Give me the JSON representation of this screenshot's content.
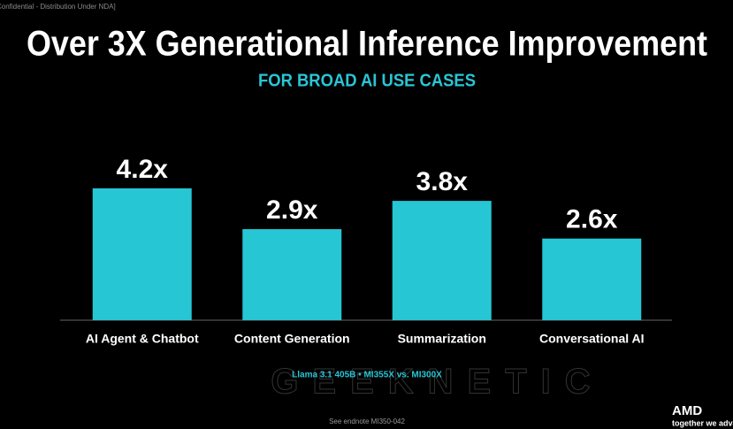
{
  "chart_data": {
    "type": "bar",
    "title": "Over 3X Generational Inference Improvement",
    "subtitle": "FOR BROAD AI USE CASES",
    "categories": [
      "AI Agent & Chatbot",
      "Content Generation",
      "Summarization",
      "Conversational AI"
    ],
    "values": [
      4.2,
      2.9,
      3.8,
      2.6
    ],
    "value_labels": [
      "4.2x",
      "2.9x",
      "3.8x",
      "2.6x"
    ],
    "color": "#26c6d4",
    "note": "Llama 3.1 405B  •  MI355X vs. MI300X",
    "source": "See endnote MI350-042"
  },
  "header": {
    "confidential": "Confidential - Distribution Under NDA]"
  },
  "footer": {
    "logo": "AMD",
    "tagline": "together we advance"
  },
  "watermark": "GEEKNETIC"
}
